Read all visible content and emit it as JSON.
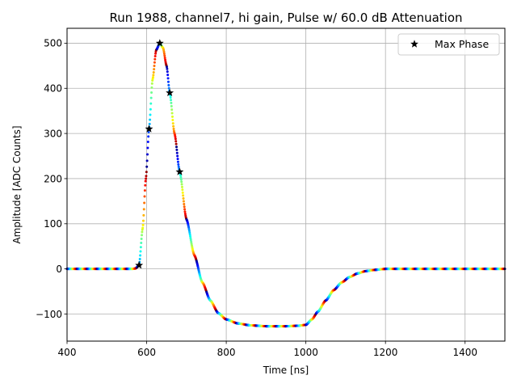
{
  "chart_data": {
    "type": "scatter",
    "title": "Run 1988, channel7, hi gain, Pulse w/ 60.0 dB Attenuation",
    "xlabel": "Time [ns]",
    "ylabel": "Amplitude [ADC Counts]",
    "xlim": [
      400,
      1500
    ],
    "ylim": [
      -160,
      533
    ],
    "xticks": [
      400,
      600,
      800,
      1000,
      1200,
      1400
    ],
    "yticks": [
      -100,
      0,
      100,
      200,
      300,
      400,
      500
    ],
    "grid": true,
    "legend": {
      "placement": "top-right",
      "entries": [
        "Max Phase"
      ]
    },
    "waveform": {
      "description": "pulse samples colored by phase (jet colormap)",
      "baseline": 0,
      "peak_time": 633,
      "peak_amplitude": 500,
      "undershoot_amplitude": -127,
      "undershoot_range": [
        850,
        1000
      ],
      "recovery_end": 1200,
      "colormap_period_ns": 25
    },
    "series": [
      {
        "name": "Max Phase",
        "marker": "star",
        "x": [
          581,
          606,
          633,
          658,
          683
        ],
        "y": [
          8,
          310,
          500,
          390,
          215
        ]
      }
    ]
  }
}
